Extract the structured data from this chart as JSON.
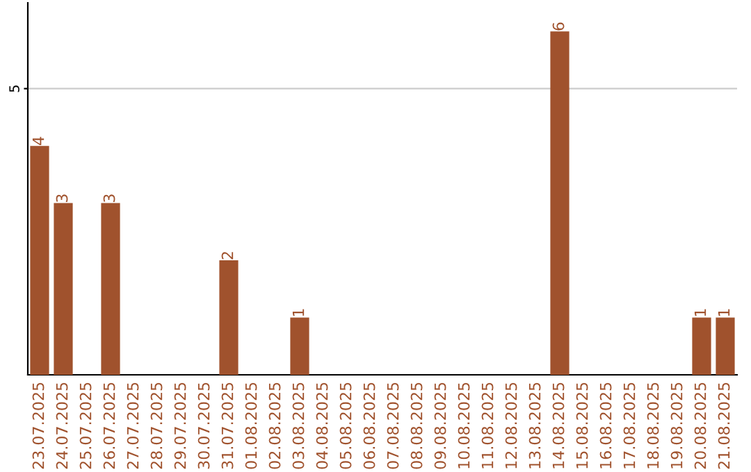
{
  "chart_data": {
    "type": "bar",
    "categories": [
      "23.07.2025",
      "24.07.2025",
      "25.07.2025",
      "26.07.2025",
      "27.07.2025",
      "28.07.2025",
      "29.07.2025",
      "30.07.2025",
      "31.07.2025",
      "01.08.2025",
      "02.08.2025",
      "03.08.2025",
      "04.08.2025",
      "05.08.2025",
      "06.08.2025",
      "07.08.2025",
      "08.08.2025",
      "09.08.2025",
      "10.08.2025",
      "11.08.2025",
      "12.08.2025",
      "13.08.2025",
      "14.08.2025",
      "15.08.2025",
      "16.08.2025",
      "17.08.2025",
      "18.08.2025",
      "19.08.2025",
      "20.08.2025",
      "21.08.2025"
    ],
    "values": [
      4,
      3,
      0,
      3,
      0,
      0,
      0,
      0,
      2,
      0,
      0,
      1,
      0,
      0,
      0,
      0,
      0,
      0,
      0,
      0,
      0,
      0,
      6,
      0,
      0,
      0,
      0,
      0,
      1,
      1
    ],
    "value_labels": [
      "4",
      "3",
      null,
      "3",
      null,
      null,
      null,
      null,
      "2",
      null,
      null,
      "1",
      null,
      null,
      null,
      null,
      null,
      null,
      null,
      null,
      null,
      null,
      "6",
      null,
      null,
      null,
      null,
      null,
      "1",
      "1"
    ],
    "color": "#a0522d",
    "ylim": [
      0,
      6.5
    ],
    "yticks": [
      5
    ],
    "grid": "y"
  }
}
